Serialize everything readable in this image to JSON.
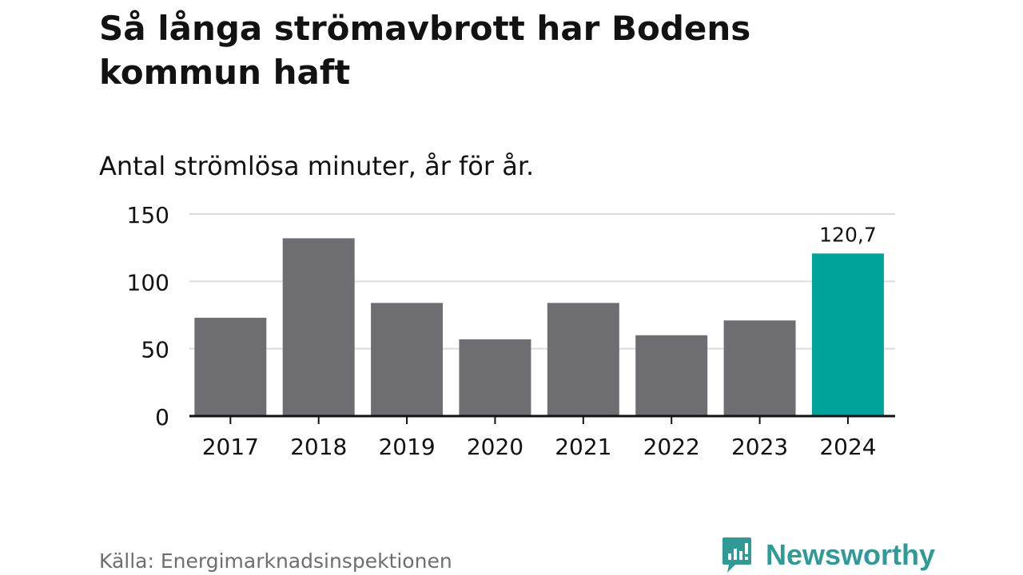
{
  "title": "Så långa strömavbrott har Bodens kommun haft",
  "subtitle": "Antal strömlösa minuter, år för år.",
  "source": "Källa: Energimarknadsinspektionen",
  "brand": {
    "name": "Newsworthy",
    "icon": "newsworthy-logo-icon",
    "color": "#2f9a96"
  },
  "colors": {
    "bar": "#6e6d72",
    "highlight": "#00a39a",
    "grid": "#dddddd",
    "axis": "#121212"
  },
  "chart_data": {
    "type": "bar",
    "title": "Så långa strömavbrott har Bodens kommun haft",
    "subtitle": "Antal strömlösa minuter, år för år.",
    "categories": [
      "2017",
      "2018",
      "2019",
      "2020",
      "2021",
      "2022",
      "2023",
      "2024"
    ],
    "values": [
      73,
      132,
      84,
      57,
      84,
      60,
      71,
      120.7
    ],
    "highlight_index": 7,
    "data_labels": [
      {
        "index": 7,
        "text": "120,7"
      }
    ],
    "ylim": [
      0,
      150
    ],
    "yticks": [
      0,
      50,
      100,
      150
    ],
    "ytick_labels": [
      "0",
      "50",
      "100",
      "150"
    ],
    "grid": true,
    "xlabel": "",
    "ylabel": ""
  }
}
